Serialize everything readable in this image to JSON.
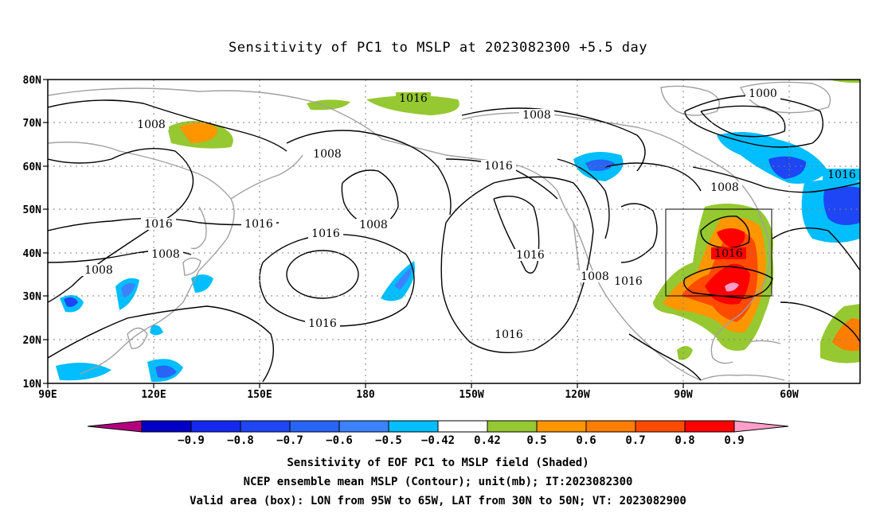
{
  "title": "Sensitivity of PC1 to MSLP at 2023082300 +5.5 day",
  "lat_labels": [
    "80N",
    "70N",
    "60N",
    "50N",
    "40N",
    "30N",
    "20N",
    "10N"
  ],
  "lon_labels": [
    "90E",
    "120E",
    "150E",
    "180",
    "150W",
    "120W",
    "90W",
    "60W"
  ],
  "contour_labels": [
    "1016",
    "1008",
    "1008",
    "1016",
    "1000",
    "1008",
    "1016",
    "1016",
    "1008",
    "1016",
    "1008",
    "1016",
    "1016",
    "1008",
    "1016",
    "1016",
    "1016",
    "1016"
  ],
  "colorbar": {
    "ticks": [
      "-0.9",
      "-0.8",
      "-0.7",
      "-0.6",
      "-0.5",
      "-0.42",
      "0.42",
      "0.5",
      "0.6",
      "0.7",
      "0.8",
      "0.9"
    ],
    "colors": [
      "#b2007f",
      "#0000c8",
      "#1428f0",
      "#1e46f5",
      "#2864f5",
      "#3c82ff",
      "#00beff",
      "#ffffff",
      "#96c832",
      "#ff9600",
      "#ff7d00",
      "#ff4b00",
      "#ff0000",
      "#ff9ec8"
    ]
  },
  "captions": {
    "line1": "Sensitivity of EOF PC1 to MSLP field (Shaded)",
    "line2": "NCEP ensemble mean MSLP (Contour); unit(mb); IT:2023082300",
    "line3": "Valid area (box): LON from 95W to 65W, LAT from 30N to 50N; VT: 2023082900"
  },
  "colors": {
    "coastline": "#a0a0a0",
    "contour": "#000000",
    "frame": "#000000"
  }
}
